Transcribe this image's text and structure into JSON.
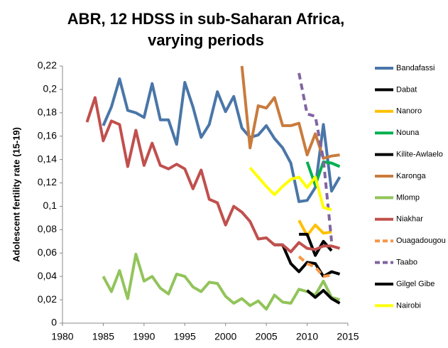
{
  "chart_data": {
    "type": "line",
    "title": "ABR, 12 HDSS in sub-Saharan Africa, varying periods",
    "y_label": "Adolescent fertility rate (15-19)",
    "xlim": [
      1980,
      2015
    ],
    "xticks": [
      1980,
      1985,
      1990,
      1995,
      2000,
      2005,
      2010,
      2015
    ],
    "ylim": [
      0,
      0.22
    ],
    "yticks": [
      0,
      {
        "value": 0.02,
        "label": "0,02"
      },
      {
        "value": 0.04,
        "label": "0,04"
      },
      {
        "value": 0.06,
        "label": "0,06"
      },
      {
        "value": 0.08,
        "label": "0,08"
      },
      {
        "value": 0.1,
        "label": "0,1"
      },
      {
        "value": 0.12,
        "label": "0,12"
      },
      {
        "value": 0.14,
        "label": "0,14"
      },
      {
        "value": 0.16,
        "label": "0,16"
      },
      {
        "value": 0.18,
        "label": "0,18"
      },
      {
        "value": 0.2,
        "label": "0,2"
      },
      {
        "value": 0.22,
        "label": "0,22"
      }
    ],
    "legend": "right",
    "series": [
      {
        "name": "Bandafassi",
        "color": "#4a76a8",
        "dashed": false,
        "x": [
          1985,
          1986,
          1987,
          1988,
          1989,
          1990,
          1991,
          1992,
          1993,
          1994,
          1995,
          1996,
          1997,
          1998,
          1999,
          2000,
          2001,
          2002,
          2003,
          2004,
          2005,
          2006,
          2007,
          2008,
          2009,
          2010,
          2011,
          2012,
          2013,
          2014
        ],
        "values": [
          0.169,
          0.185,
          0.209,
          0.182,
          0.18,
          0.176,
          0.205,
          0.174,
          0.174,
          0.153,
          0.206,
          0.185,
          0.159,
          0.17,
          0.198,
          0.181,
          0.194,
          0.167,
          0.159,
          0.161,
          0.169,
          0.158,
          0.15,
          0.137,
          0.104,
          0.105,
          0.116,
          0.17,
          0.113,
          0.125
        ]
      },
      {
        "name": "Dabat",
        "color": "#000000",
        "dashed": false,
        "x": [
          2006,
          2007,
          2008,
          2009,
          2010,
          2011,
          2012,
          2013,
          2014
        ],
        "values": [
          0.067,
          0.067,
          0.051,
          0.044,
          0.052,
          0.051,
          0.04,
          0.044,
          0.042
        ]
      },
      {
        "name": "Nanoro",
        "color": "#ffc000",
        "dashed": false,
        "x": [
          2009,
          2010,
          2011,
          2012,
          2013
        ],
        "values": [
          0.088,
          0.075,
          0.084,
          0.077,
          0.078
        ]
      },
      {
        "name": "Nouna",
        "color": "#00b050",
        "dashed": false,
        "x": [
          2010,
          2011,
          2012,
          2013,
          2014
        ],
        "values": [
          0.138,
          0.118,
          0.138,
          0.137,
          0.134
        ]
      },
      {
        "name": "Kilite-Awlaelo",
        "color": "#000000",
        "dashed": false,
        "x": [
          2009,
          2010,
          2011,
          2012,
          2013
        ],
        "values": [
          0.076,
          0.076,
          0.058,
          0.07,
          0.062
        ]
      },
      {
        "name": "Karonga",
        "color": "#c97b3c",
        "dashed": false,
        "x": [
          2002,
          2003,
          2004,
          2005,
          2006,
          2007,
          2008,
          2009,
          2010,
          2011,
          2012,
          2013,
          2014
        ],
        "values": [
          0.22,
          0.15,
          0.186,
          0.184,
          0.193,
          0.169,
          0.169,
          0.171,
          0.144,
          0.162,
          0.141,
          0.143,
          0.144
        ]
      },
      {
        "name": "Mlomp",
        "color": "#92c45a",
        "dashed": false,
        "x": [
          1985,
          1986,
          1987,
          1988,
          1989,
          1990,
          1991,
          1992,
          1993,
          1994,
          1995,
          1996,
          1997,
          1998,
          1999,
          2000,
          2001,
          2002,
          2003,
          2004,
          2005,
          2006,
          2007,
          2008,
          2009,
          2010,
          2011,
          2012,
          2013,
          2014
        ],
        "values": [
          0.04,
          0.027,
          0.045,
          0.021,
          0.059,
          0.036,
          0.04,
          0.03,
          0.025,
          0.042,
          0.04,
          0.031,
          0.027,
          0.035,
          0.034,
          0.023,
          0.017,
          0.021,
          0.015,
          0.019,
          0.012,
          0.024,
          0.018,
          0.017,
          0.029,
          0.027,
          0.024,
          0.036,
          0.022,
          0.02
        ]
      },
      {
        "name": "Niakhar",
        "color": "#c0504d",
        "dashed": false,
        "x": [
          1983,
          1984,
          1985,
          1986,
          1987,
          1988,
          1989,
          1990,
          1991,
          1992,
          1993,
          1994,
          1995,
          1996,
          1997,
          1998,
          1999,
          2000,
          2001,
          2002,
          2003,
          2004,
          2005,
          2006,
          2007,
          2008,
          2009,
          2010,
          2011,
          2012,
          2013,
          2014
        ],
        "values": [
          0.172,
          0.193,
          0.156,
          0.173,
          0.17,
          0.134,
          0.165,
          0.135,
          0.154,
          0.135,
          0.132,
          0.136,
          0.132,
          0.115,
          0.131,
          0.106,
          0.103,
          0.084,
          0.1,
          0.095,
          0.087,
          0.072,
          0.073,
          0.067,
          0.067,
          0.061,
          0.069,
          0.064,
          0.063,
          0.066,
          0.066,
          0.064
        ]
      },
      {
        "name": "Ouagadougou",
        "color": "#f79646",
        "dashed": true,
        "x": [
          2009,
          2010,
          2011,
          2012,
          2013
        ],
        "values": [
          0.057,
          0.051,
          0.048,
          0.04,
          0.041
        ]
      },
      {
        "name": "Taabo",
        "color": "#8064a2",
        "dashed": true,
        "x": [
          2009,
          2010,
          2011,
          2012,
          2013
        ],
        "values": [
          0.214,
          0.179,
          0.177,
          0.14,
          0.07
        ]
      },
      {
        "name": "Gilgel Gibe",
        "color": "#000000",
        "dashed": false,
        "x": [
          2010,
          2011,
          2012,
          2013,
          2014
        ],
        "values": [
          0.028,
          0.022,
          0.028,
          0.021,
          0.017
        ]
      },
      {
        "name": "Nairobi",
        "color": "#ffff00",
        "dashed": false,
        "x": [
          2003,
          2004,
          2005,
          2006,
          2007,
          2008,
          2009,
          2010,
          2011,
          2012,
          2013
        ],
        "values": [
          0.133,
          0.125,
          0.117,
          0.11,
          0.117,
          0.123,
          0.125,
          0.116,
          0.125,
          0.099,
          0.097
        ]
      }
    ]
  }
}
